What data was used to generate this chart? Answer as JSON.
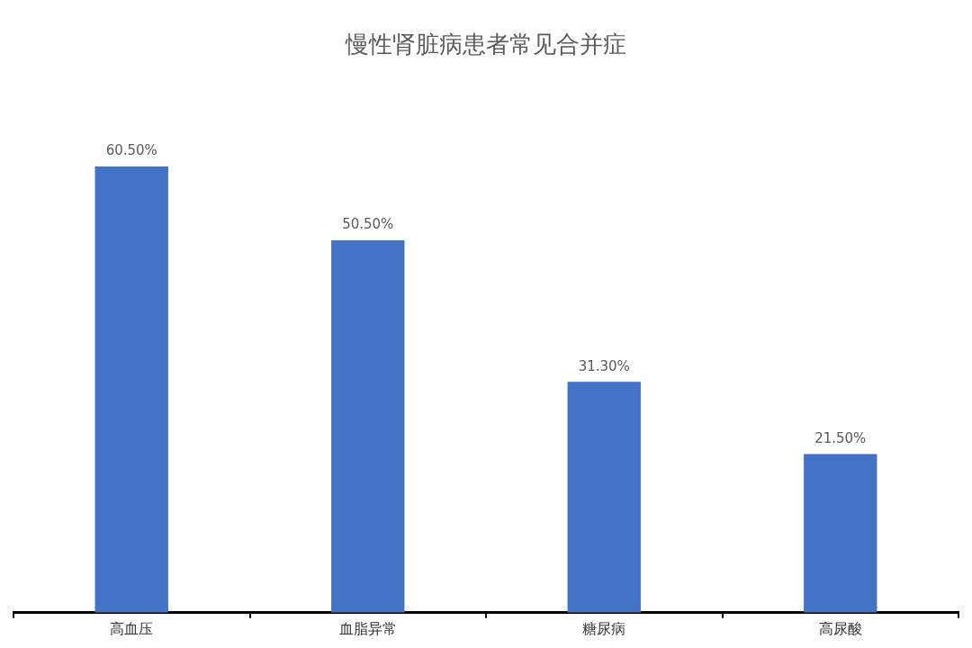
{
  "chart_data": {
    "type": "bar",
    "title": "慢性肾脏病患者常见合并症",
    "categories": [
      "高血压",
      "血脂异常",
      "糖尿病",
      "高尿酸"
    ],
    "values": [
      60.5,
      50.5,
      31.3,
      21.5
    ],
    "value_labels": [
      "60.50%",
      "50.50%",
      "31.30%",
      "21.50%"
    ],
    "color": "#4472c4",
    "grid": false,
    "legend": false,
    "tick_labels": "x"
  }
}
